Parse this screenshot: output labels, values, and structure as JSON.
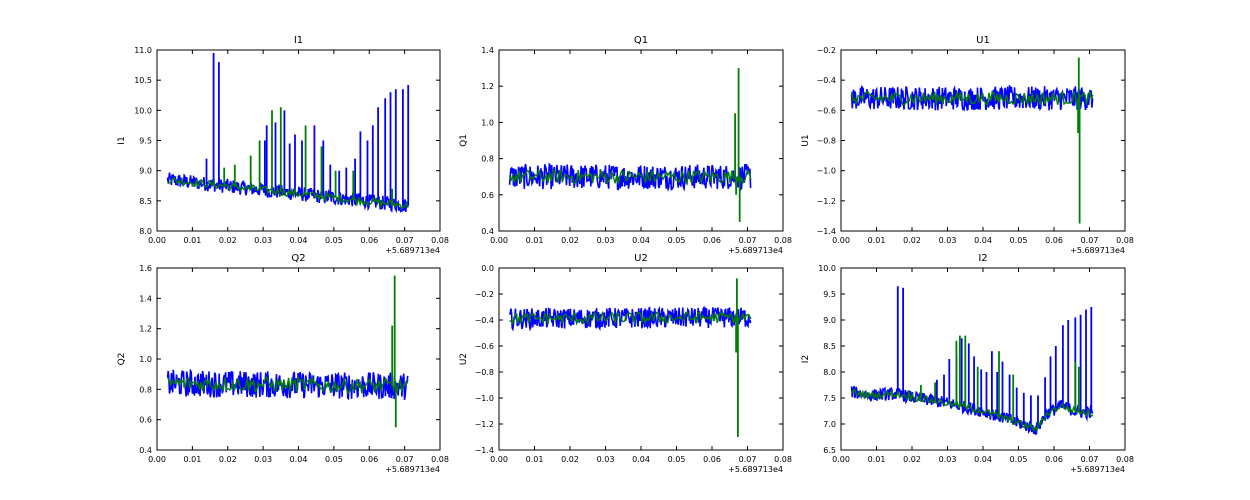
{
  "chart_data": [
    {
      "type": "line",
      "title": "I1",
      "xlabel": "",
      "ylabel": "I1",
      "xlim": [
        0.0,
        0.08
      ],
      "ylim": [
        8.0,
        11.0
      ],
      "x_ticks": [
        "0.00",
        "0.01",
        "0.02",
        "0.03",
        "0.04",
        "0.05",
        "0.06",
        "0.07",
        "0.08"
      ],
      "y_ticks": [
        "8.0",
        "8.5",
        "9.0",
        "9.5",
        "10.0",
        "10.5",
        "11.0"
      ],
      "x_offset": "+5.689713e4",
      "band": {
        "start": [
          0.003,
          8.85
        ],
        "end": [
          0.071,
          8.42
        ],
        "halfwidth": 0.12
      },
      "series": [
        {
          "color": "#0000ff",
          "spikes": [
            [
              0.016,
              10.95
            ],
            [
              0.0175,
              10.8
            ],
            [
              0.014,
              9.2
            ],
            [
              0.0305,
              9.5
            ],
            [
              0.031,
              9.75
            ],
            [
              0.0335,
              9.8
            ],
            [
              0.036,
              10.0
            ],
            [
              0.0375,
              9.45
            ],
            [
              0.039,
              9.6
            ],
            [
              0.041,
              9.5
            ],
            [
              0.0445,
              9.75
            ],
            [
              0.047,
              9.5
            ],
            [
              0.049,
              9.1
            ],
            [
              0.0515,
              9.0
            ],
            [
              0.0535,
              9.05
            ],
            [
              0.056,
              9.2
            ],
            [
              0.0575,
              9.65
            ],
            [
              0.0595,
              9.5
            ],
            [
              0.061,
              9.75
            ],
            [
              0.0625,
              10.05
            ],
            [
              0.0645,
              10.2
            ],
            [
              0.066,
              10.3
            ],
            [
              0.0675,
              10.35
            ],
            [
              0.0695,
              10.35
            ],
            [
              0.071,
              10.42
            ]
          ]
        },
        {
          "color": "#008000",
          "spikes": [
            [
              0.019,
              9.05
            ],
            [
              0.022,
              9.1
            ],
            [
              0.0265,
              9.25
            ],
            [
              0.029,
              9.5
            ],
            [
              0.0325,
              10.0
            ],
            [
              0.035,
              10.05
            ],
            [
              0.042,
              9.75
            ],
            [
              0.0465,
              9.4
            ],
            [
              0.0505,
              9.0
            ],
            [
              0.0555,
              9.0
            ],
            [
              0.0665,
              8.7
            ]
          ]
        }
      ]
    },
    {
      "type": "line",
      "title": "Q1",
      "xlabel": "",
      "ylabel": "Q1",
      "xlim": [
        0.0,
        0.08
      ],
      "ylim": [
        0.4,
        1.4
      ],
      "x_ticks": [
        "0.00",
        "0.01",
        "0.02",
        "0.03",
        "0.04",
        "0.05",
        "0.06",
        "0.07",
        "0.08"
      ],
      "y_ticks": [
        "0.4",
        "0.6",
        "0.8",
        "1.0",
        "1.2",
        "1.4"
      ],
      "x_offset": "+5.689713e4",
      "band": {
        "start": [
          0.003,
          0.7
        ],
        "end": [
          0.071,
          0.7
        ],
        "halfwidth": 0.07
      },
      "series": [
        {
          "color": "#0000ff",
          "spikes": []
        },
        {
          "color": "#008000",
          "spikes": [
            [
              0.0675,
              1.3
            ],
            [
              0.0665,
              1.05
            ],
            [
              0.0678,
              0.45
            ],
            [
              0.0668,
              0.6
            ]
          ]
        }
      ]
    },
    {
      "type": "line",
      "title": "U1",
      "xlabel": "",
      "ylabel": "U1",
      "xlim": [
        0.0,
        0.08
      ],
      "ylim": [
        -1.4,
        -0.2
      ],
      "x_ticks": [
        "0.00",
        "0.01",
        "0.02",
        "0.03",
        "0.04",
        "0.05",
        "0.06",
        "0.07",
        "0.08"
      ],
      "y_ticks": [
        "−1.4",
        "−1.2",
        "−1.0",
        "−0.8",
        "−0.6",
        "−0.4",
        "−0.2"
      ],
      "x_offset": "+5.689713e4",
      "band": {
        "start": [
          0.003,
          -0.52
        ],
        "end": [
          0.071,
          -0.52
        ],
        "halfwidth": 0.08
      },
      "series": [
        {
          "color": "#0000ff",
          "spikes": []
        },
        {
          "color": "#008000",
          "spikes": [
            [
              0.067,
              -0.25
            ],
            [
              0.0672,
              -1.35
            ],
            [
              0.0668,
              -0.75
            ]
          ]
        }
      ]
    },
    {
      "type": "line",
      "title": "Q2",
      "xlabel": "",
      "ylabel": "Q2",
      "xlim": [
        0.0,
        0.08
      ],
      "ylim": [
        0.4,
        1.6
      ],
      "x_ticks": [
        "0.00",
        "0.01",
        "0.02",
        "0.03",
        "0.04",
        "0.05",
        "0.06",
        "0.07",
        "0.08"
      ],
      "y_ticks": [
        "0.4",
        "0.6",
        "0.8",
        "1.0",
        "1.2",
        "1.4",
        "1.6"
      ],
      "x_offset": "+5.689713e4",
      "band": {
        "start": [
          0.003,
          0.84
        ],
        "end": [
          0.071,
          0.82
        ],
        "halfwidth": 0.09
      },
      "series": [
        {
          "color": "#0000ff",
          "spikes": []
        },
        {
          "color": "#008000",
          "spikes": [
            [
              0.0672,
              1.55
            ],
            [
              0.0665,
              1.22
            ],
            [
              0.0675,
              0.55
            ]
          ]
        }
      ]
    },
    {
      "type": "line",
      "title": "U2",
      "xlabel": "",
      "ylabel": "U2",
      "xlim": [
        0.0,
        0.08
      ],
      "ylim": [
        -1.4,
        0.0
      ],
      "x_ticks": [
        "0.00",
        "0.01",
        "0.02",
        "0.03",
        "0.04",
        "0.05",
        "0.06",
        "0.07",
        "0.08"
      ],
      "y_ticks": [
        "−1.4",
        "−1.2",
        "−1.0",
        "−0.8",
        "−0.6",
        "−0.4",
        "−0.2",
        "0.0"
      ],
      "x_offset": "+5.689713e4",
      "band": {
        "start": [
          0.003,
          -0.39
        ],
        "end": [
          0.071,
          -0.38
        ],
        "halfwidth": 0.08
      },
      "series": [
        {
          "color": "#0000ff",
          "spikes": []
        },
        {
          "color": "#008000",
          "spikes": [
            [
              0.067,
              -0.08
            ],
            [
              0.0673,
              -1.3
            ],
            [
              0.0668,
              -0.65
            ]
          ]
        }
      ]
    },
    {
      "type": "line",
      "title": "I2",
      "xlabel": "",
      "ylabel": "I2",
      "xlim": [
        0.0,
        0.08
      ],
      "ylim": [
        6.5,
        10.0
      ],
      "x_ticks": [
        "0.00",
        "0.01",
        "0.02",
        "0.03",
        "0.04",
        "0.05",
        "0.06",
        "0.07",
        "0.08"
      ],
      "y_ticks": [
        "6.5",
        "7.0",
        "7.5",
        "8.0",
        "8.5",
        "9.0",
        "9.5",
        "10.0"
      ],
      "x_offset": "+5.689713e4",
      "band_path": [
        [
          0.003,
          7.62
        ],
        [
          0.008,
          7.55
        ],
        [
          0.015,
          7.58
        ],
        [
          0.02,
          7.52
        ],
        [
          0.03,
          7.4
        ],
        [
          0.04,
          7.25
        ],
        [
          0.05,
          7.02
        ],
        [
          0.055,
          6.9
        ],
        [
          0.058,
          7.2
        ],
        [
          0.062,
          7.35
        ],
        [
          0.066,
          7.25
        ],
        [
          0.071,
          7.2
        ]
      ],
      "band": {
        "halfwidth": 0.12
      },
      "series": [
        {
          "color": "#0000ff",
          "spikes": [
            [
              0.016,
              9.65
            ],
            [
              0.0175,
              9.62
            ],
            [
              0.027,
              7.85
            ],
            [
              0.029,
              7.95
            ],
            [
              0.0305,
              8.25
            ],
            [
              0.0325,
              8.35
            ],
            [
              0.034,
              8.65
            ],
            [
              0.036,
              8.55
            ],
            [
              0.0375,
              8.3
            ],
            [
              0.0395,
              8.05
            ],
            [
              0.041,
              8.0
            ],
            [
              0.0425,
              8.4
            ],
            [
              0.044,
              8.0
            ],
            [
              0.0455,
              8.2
            ],
            [
              0.0475,
              7.95
            ],
            [
              0.0495,
              7.7
            ],
            [
              0.0515,
              7.6
            ],
            [
              0.0535,
              7.55
            ],
            [
              0.0555,
              7.55
            ],
            [
              0.0575,
              7.9
            ],
            [
              0.059,
              8.3
            ],
            [
              0.0605,
              8.5
            ],
            [
              0.0625,
              8.9
            ],
            [
              0.064,
              9.0
            ],
            [
              0.066,
              9.05
            ],
            [
              0.0675,
              9.1
            ],
            [
              0.069,
              9.2
            ],
            [
              0.0705,
              9.25
            ]
          ]
        },
        {
          "color": "#008000",
          "spikes": [
            [
              0.019,
              7.65
            ],
            [
              0.0225,
              7.75
            ],
            [
              0.0265,
              7.8
            ],
            [
              0.0325,
              8.6
            ],
            [
              0.0335,
              8.7
            ],
            [
              0.035,
              8.7
            ],
            [
              0.0385,
              8.1
            ],
            [
              0.0445,
              8.4
            ],
            [
              0.0485,
              7.95
            ],
            [
              0.066,
              8.2
            ],
            [
              0.067,
              8.1
            ]
          ]
        }
      ]
    }
  ]
}
